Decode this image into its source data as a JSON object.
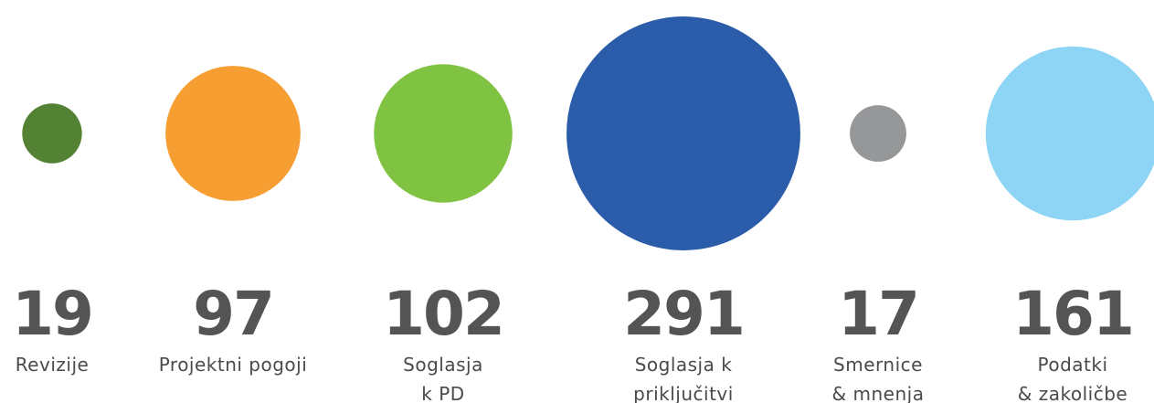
{
  "chart_data": {
    "type": "bubble",
    "categories": [
      [
        "Revizije"
      ],
      [
        "Projektni pogoji"
      ],
      [
        "Soglasja",
        "k PD"
      ],
      [
        "Soglasja k",
        "priključitvi"
      ],
      [
        "Smernice",
        "& mnenja"
      ],
      [
        "Podatki",
        "& zakoličbe"
      ]
    ],
    "values": [
      19,
      97,
      102,
      291,
      17,
      161
    ],
    "colors": [
      "#548235",
      "#f79e33",
      "#80c241",
      "#2a5caa",
      "#969799",
      "#8dd4f5"
    ]
  }
}
